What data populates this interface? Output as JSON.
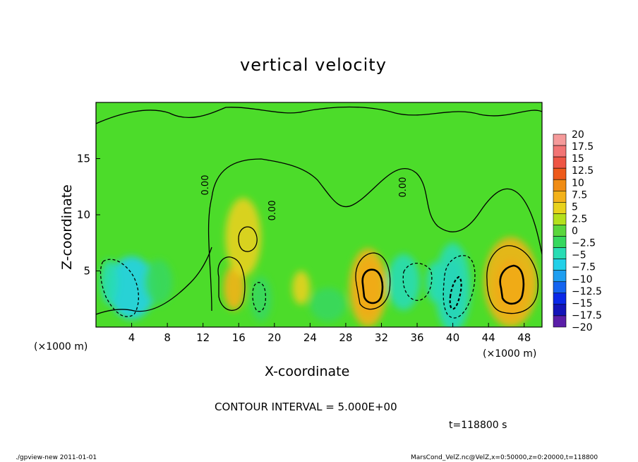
{
  "chart_data": {
    "type": "heatmap",
    "title": "vertical velocity",
    "xlabel": "X-coordinate",
    "ylabel": "Z-coordinate",
    "x_unit": "(×1000 m)",
    "x_ticks": [
      4,
      8,
      12,
      16,
      20,
      24,
      28,
      32,
      36,
      40,
      44,
      48
    ],
    "y_ticks": [
      5,
      10,
      15
    ],
    "xlim": [
      0,
      50
    ],
    "ylim": [
      0,
      20
    ],
    "contour_interval_text": "CONTOUR INTERVAL = 5.000E+00",
    "time_text": "t=118800 s",
    "contour_labels": [
      "0.00",
      "0.00",
      "0.00"
    ],
    "colorbar": {
      "ticks": [
        "20",
        "17.5",
        "15",
        "12.5",
        "10",
        "7.5",
        "5",
        "2.5",
        "0",
        "−2.5",
        "−5",
        "−7.5",
        "−10",
        "−12.5",
        "−15",
        "−17.5",
        "−20"
      ],
      "colors": [
        "#f59a9a",
        "#f27474",
        "#ee5544",
        "#ee5a1a",
        "#f08c14",
        "#f3b21a",
        "#e8d21c",
        "#b4e01c",
        "#5ad63c",
        "#36d85e",
        "#28dcb4",
        "#22d0e8",
        "#1e9ef0",
        "#1464f0",
        "#0a28e8",
        "#1414b8",
        "#5a1ea8"
      ]
    },
    "cells": [
      {
        "x": 4,
        "z": 3.5,
        "value": -7.5,
        "rx": 2.6,
        "rz": 2.8
      },
      {
        "x": 1.5,
        "z": 4,
        "value": -5,
        "rx": 1.0,
        "rz": 2.0
      },
      {
        "x": 7,
        "z": 4,
        "value": -2.5,
        "rx": 1.6,
        "rz": 2.0
      },
      {
        "x": 15.5,
        "z": 3.5,
        "value": 7.5,
        "rx": 1.2,
        "rz": 2.0
      },
      {
        "x": 16.5,
        "z": 8,
        "value": 5,
        "rx": 2.0,
        "rz": 3.5
      },
      {
        "x": 18.5,
        "z": 2.5,
        "value": -2.5,
        "rx": 1.2,
        "rz": 2.0
      },
      {
        "x": 23,
        "z": 3.5,
        "value": 5,
        "rx": 1.0,
        "rz": 1.5
      },
      {
        "x": 30.5,
        "z": 3.5,
        "value": 12.5,
        "rx": 1.4,
        "rz": 2.5
      },
      {
        "x": 30.5,
        "z": 3.5,
        "value": 7.5,
        "rx": 2.1,
        "rz": 3.5
      },
      {
        "x": 34.5,
        "z": 4,
        "value": -5,
        "rx": 1.8,
        "rz": 2.5
      },
      {
        "x": 38,
        "z": 4,
        "value": -5,
        "rx": 1.0,
        "rz": 1.8
      },
      {
        "x": 40,
        "z": 3,
        "value": -10,
        "rx": 1.2,
        "rz": 3.0
      },
      {
        "x": 40,
        "z": 3.5,
        "value": -5,
        "rx": 2.0,
        "rz": 4.0
      },
      {
        "x": 46.5,
        "z": 3.5,
        "value": 12.5,
        "rx": 1.8,
        "rz": 2.5
      },
      {
        "x": 46.5,
        "z": 4,
        "value": 7.5,
        "rx": 3.0,
        "rz": 4.0
      },
      {
        "x": 26,
        "z": 2,
        "value": -2.5,
        "rx": 2.0,
        "rz": 1.5
      }
    ]
  },
  "footer": {
    "left": "./gpview-new   2011-01-01",
    "right": "MarsCond_VelZ.nc@VelZ,x=0:50000,z=0:20000,t=118800"
  }
}
